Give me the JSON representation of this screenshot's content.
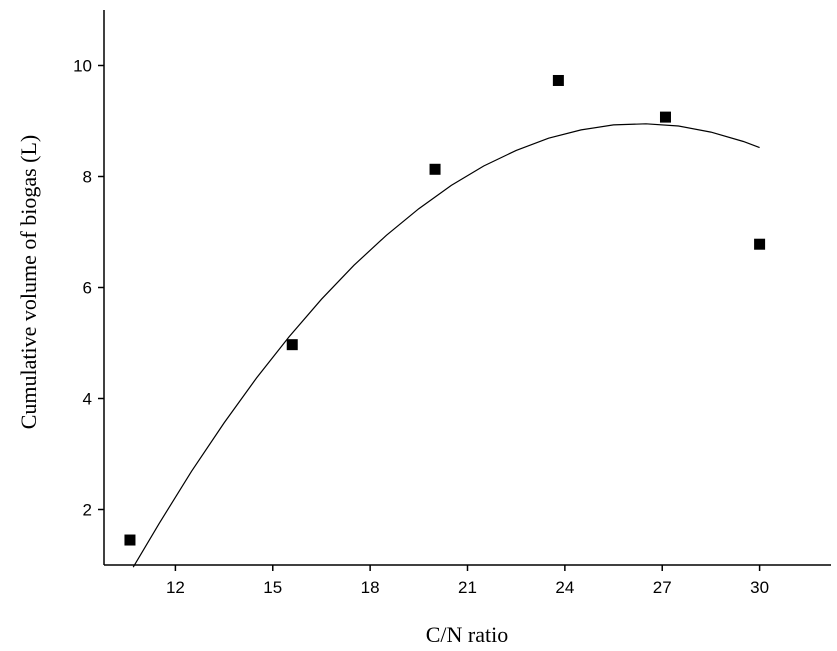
{
  "chart_data": {
    "type": "scatter",
    "title": "",
    "xlabel": "C/N ratio",
    "ylabel": "Cumulative volume of biogas (L)",
    "xlim": [
      9.8,
      32.2
    ],
    "ylim": [
      1.0,
      11.0
    ],
    "x_ticks": [
      12,
      15,
      18,
      21,
      24,
      27,
      30
    ],
    "y_ticks": [
      2,
      4,
      6,
      8,
      10
    ],
    "grid": false,
    "legend": "none",
    "marker": "square",
    "colors": {
      "marker": "#000000",
      "fit_line": "#000000",
      "axes": "#000000"
    },
    "series": [
      {
        "x": [
          10.6,
          15.6,
          20.0,
          23.8,
          27.1,
          30.0
        ],
        "y": [
          1.45,
          4.97,
          8.13,
          9.73,
          9.07,
          6.78
        ]
      }
    ],
    "fit_line": {
      "type": "quadratic",
      "x": [
        10.7,
        11.5,
        12.5,
        13.5,
        14.5,
        15.5,
        16.5,
        17.5,
        18.5,
        19.5,
        20.5,
        21.5,
        22.5,
        23.5,
        24.5,
        25.5,
        26.5,
        27.5,
        28.5,
        29.5,
        30.0
      ],
      "y": [
        0.96,
        1.75,
        2.69,
        3.56,
        4.37,
        5.11,
        5.79,
        6.4,
        6.94,
        7.42,
        7.84,
        8.19,
        8.47,
        8.69,
        8.84,
        8.93,
        8.95,
        8.91,
        8.8,
        8.63,
        8.52
      ]
    }
  }
}
